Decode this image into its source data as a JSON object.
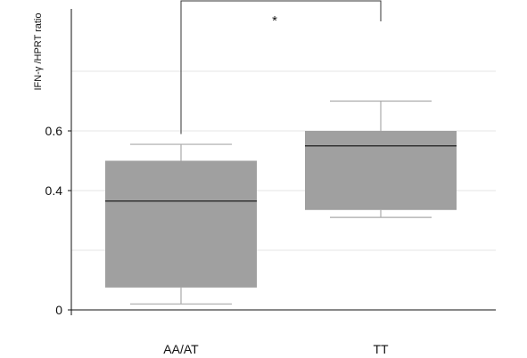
{
  "chart_data": {
    "type": "box",
    "ylabel": "IFN-γ /HPRT ratio",
    "ylim": [
      0,
      0.75
    ],
    "yticks": [
      {
        "value": 0,
        "label": "0"
      },
      {
        "value": 0.4,
        "label": "0.4"
      },
      {
        "value": 0.6,
        "label": "0.6"
      }
    ],
    "gridlines": [
      0.2,
      0.4,
      0.6,
      0.8
    ],
    "grid": true,
    "categories": [
      "AA/AT",
      "TT"
    ],
    "boxes": [
      {
        "category": "AA/AT",
        "whisker_low": 0.02,
        "q1": 0.075,
        "median": 0.365,
        "q3": 0.5,
        "whisker_high": 0.555
      },
      {
        "category": "TT",
        "whisker_low": 0.31,
        "q1": 0.335,
        "median": 0.55,
        "q3": 0.6,
        "whisker_high": 0.7
      }
    ],
    "colors": {
      "box": "#a0a0a0",
      "median": "#333333",
      "whisker": "#aaaaaa",
      "grid": "#e6e6e6",
      "axis": "#111111",
      "bracket": "#333333"
    },
    "significance": {
      "from": "AA/AT",
      "to": "TT",
      "label": "*"
    }
  }
}
